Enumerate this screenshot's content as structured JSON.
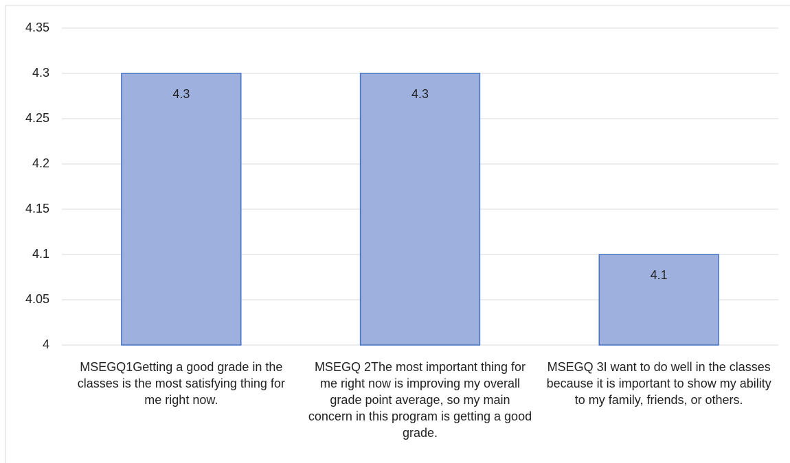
{
  "chart_data": {
    "type": "bar",
    "categories": [
      "MSEGQ1Getting a good grade in the classes is the most satisfying thing for me right now.",
      "MSEGQ 2The most important thing for me right now is improving my overall grade point average, so my main concern in this program is getting a good grade.",
      "MSEGQ 3I want to do well in the classes because it is important to show my ability to my family, friends, or others."
    ],
    "values": [
      4.3,
      4.3,
      4.1
    ],
    "color": "#9db0de",
    "edgecolor": "#4472c4",
    "ylim": [
      4,
      4.35
    ],
    "yticks": [
      4,
      4.05,
      4.1,
      4.15,
      4.2,
      4.25,
      4.3,
      4.35
    ],
    "grid": true
  }
}
